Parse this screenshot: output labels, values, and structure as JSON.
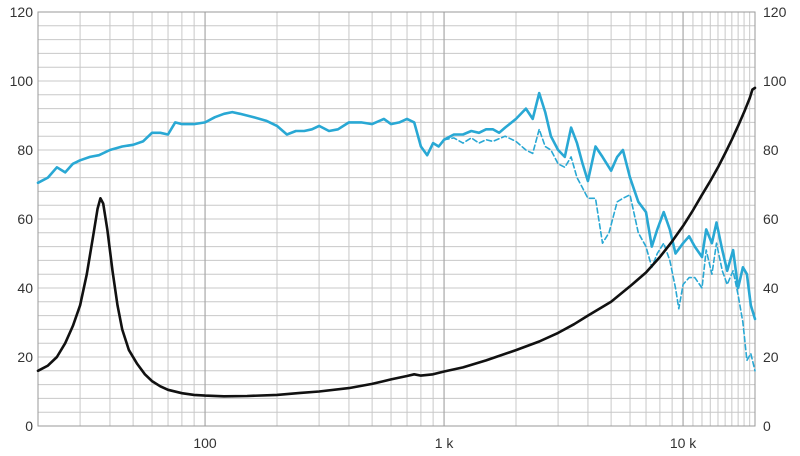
{
  "chart_data": {
    "type": "line",
    "x_scale": "log",
    "xlim": [
      20,
      20000
    ],
    "ylim": [
      0,
      120
    ],
    "y_ticks": [
      0,
      20,
      40,
      60,
      80,
      100,
      120
    ],
    "y_tick_labels": [
      "0",
      "20",
      "40",
      "60",
      "80",
      "100",
      "120"
    ],
    "x_ticks": [
      100,
      1000,
      10000
    ],
    "x_tick_labels": [
      "100",
      "1 k",
      "10 k"
    ],
    "grid": true,
    "colors": {
      "solid": "#29a8d4",
      "dashed": "#29a8d4",
      "impedance": "#111111",
      "grid": "#c8c8c8"
    },
    "series": [
      {
        "style": "solid",
        "color": "#29a8d4",
        "points": [
          [
            20,
            70.5
          ],
          [
            22,
            72
          ],
          [
            24,
            75
          ],
          [
            26,
            73.5
          ],
          [
            28,
            76
          ],
          [
            30,
            77
          ],
          [
            33,
            78
          ],
          [
            36,
            78.5
          ],
          [
            40,
            80
          ],
          [
            45,
            81
          ],
          [
            50,
            81.5
          ],
          [
            55,
            82.5
          ],
          [
            60,
            85
          ],
          [
            65,
            85
          ],
          [
            70,
            84.5
          ],
          [
            75,
            88
          ],
          [
            80,
            87.5
          ],
          [
            90,
            87.5
          ],
          [
            100,
            88
          ],
          [
            110,
            89.5
          ],
          [
            120,
            90.5
          ],
          [
            130,
            91
          ],
          [
            140,
            90.5
          ],
          [
            160,
            89.5
          ],
          [
            180,
            88.5
          ],
          [
            200,
            87
          ],
          [
            220,
            84.5
          ],
          [
            240,
            85.5
          ],
          [
            260,
            85.5
          ],
          [
            280,
            86
          ],
          [
            300,
            87
          ],
          [
            330,
            85.5
          ],
          [
            360,
            86
          ],
          [
            400,
            88
          ],
          [
            450,
            88
          ],
          [
            500,
            87.5
          ],
          [
            560,
            89
          ],
          [
            600,
            87.5
          ],
          [
            650,
            88
          ],
          [
            700,
            89
          ],
          [
            750,
            88
          ],
          [
            800,
            81
          ],
          [
            850,
            78.5
          ],
          [
            900,
            82
          ],
          [
            950,
            81
          ],
          [
            1000,
            83
          ],
          [
            1100,
            84.5
          ],
          [
            1200,
            84.5
          ],
          [
            1300,
            85.5
          ],
          [
            1400,
            85
          ],
          [
            1500,
            86
          ],
          [
            1600,
            86
          ],
          [
            1700,
            85
          ],
          [
            1800,
            86.5
          ],
          [
            2000,
            89
          ],
          [
            2200,
            92
          ],
          [
            2350,
            89
          ],
          [
            2500,
            96.5
          ],
          [
            2650,
            91
          ],
          [
            2800,
            84
          ],
          [
            3000,
            80
          ],
          [
            3200,
            78
          ],
          [
            3400,
            86.5
          ],
          [
            3600,
            82
          ],
          [
            3800,
            76
          ],
          [
            4000,
            71
          ],
          [
            4300,
            81
          ],
          [
            4600,
            78
          ],
          [
            5000,
            74
          ],
          [
            5300,
            78
          ],
          [
            5600,
            80
          ],
          [
            6000,
            72
          ],
          [
            6500,
            65
          ],
          [
            7000,
            62
          ],
          [
            7400,
            52
          ],
          [
            7800,
            57
          ],
          [
            8300,
            62
          ],
          [
            8800,
            57
          ],
          [
            9300,
            50
          ],
          [
            10000,
            53
          ],
          [
            10600,
            55
          ],
          [
            11200,
            52
          ],
          [
            12000,
            49
          ],
          [
            12500,
            57
          ],
          [
            13200,
            53
          ],
          [
            13800,
            59
          ],
          [
            14600,
            51
          ],
          [
            15300,
            45
          ],
          [
            16200,
            51
          ],
          [
            17000,
            40
          ],
          [
            17800,
            46
          ],
          [
            18500,
            44
          ],
          [
            19200,
            35
          ],
          [
            20000,
            31
          ]
        ]
      },
      {
        "style": "dashed",
        "color": "#29a8d4",
        "points": [
          [
            1000,
            83
          ],
          [
            1100,
            83.5
          ],
          [
            1200,
            82
          ],
          [
            1300,
            83.5
          ],
          [
            1400,
            82
          ],
          [
            1500,
            83
          ],
          [
            1600,
            82.5
          ],
          [
            1800,
            84
          ],
          [
            2000,
            82.5
          ],
          [
            2200,
            80
          ],
          [
            2350,
            79
          ],
          [
            2500,
            86
          ],
          [
            2650,
            81
          ],
          [
            2800,
            80
          ],
          [
            3000,
            76
          ],
          [
            3200,
            75
          ],
          [
            3400,
            78
          ],
          [
            3600,
            72
          ],
          [
            3800,
            69
          ],
          [
            4000,
            66
          ],
          [
            4300,
            66
          ],
          [
            4600,
            53
          ],
          [
            4900,
            56
          ],
          [
            5300,
            65
          ],
          [
            5600,
            66
          ],
          [
            6000,
            67
          ],
          [
            6500,
            56
          ],
          [
            7000,
            52
          ],
          [
            7400,
            46
          ],
          [
            7800,
            50
          ],
          [
            8300,
            53
          ],
          [
            8800,
            48
          ],
          [
            9300,
            40
          ],
          [
            9600,
            34
          ],
          [
            10000,
            41
          ],
          [
            10600,
            43
          ],
          [
            11200,
            43
          ],
          [
            12000,
            40
          ],
          [
            12500,
            51
          ],
          [
            13200,
            44
          ],
          [
            13800,
            53
          ],
          [
            14600,
            45
          ],
          [
            15300,
            41
          ],
          [
            16200,
            45
          ],
          [
            17000,
            38
          ],
          [
            17800,
            30
          ],
          [
            18500,
            19
          ],
          [
            19200,
            21
          ],
          [
            20000,
            16
          ]
        ]
      },
      {
        "style": "solid-thick",
        "color": "#111111",
        "points": [
          [
            20,
            16
          ],
          [
            22,
            17.5
          ],
          [
            24,
            20
          ],
          [
            26,
            24
          ],
          [
            28,
            29
          ],
          [
            30,
            35
          ],
          [
            32,
            44
          ],
          [
            34,
            55
          ],
          [
            35.5,
            63
          ],
          [
            36.5,
            66
          ],
          [
            37.5,
            64.5
          ],
          [
            39,
            57
          ],
          [
            41,
            45
          ],
          [
            43,
            35
          ],
          [
            45,
            28
          ],
          [
            48,
            22
          ],
          [
            52,
            18
          ],
          [
            56,
            15
          ],
          [
            60,
            13
          ],
          [
            65,
            11.5
          ],
          [
            70,
            10.5
          ],
          [
            80,
            9.5
          ],
          [
            90,
            9
          ],
          [
            100,
            8.8
          ],
          [
            120,
            8.6
          ],
          [
            150,
            8.7
          ],
          [
            200,
            9
          ],
          [
            250,
            9.6
          ],
          [
            300,
            10
          ],
          [
            400,
            11
          ],
          [
            500,
            12.2
          ],
          [
            600,
            13.5
          ],
          [
            700,
            14.5
          ],
          [
            750,
            15
          ],
          [
            800,
            14.6
          ],
          [
            850,
            14.8
          ],
          [
            900,
            15
          ],
          [
            1000,
            15.8
          ],
          [
            1200,
            17
          ],
          [
            1500,
            19
          ],
          [
            2000,
            22
          ],
          [
            2500,
            24.5
          ],
          [
            3000,
            27
          ],
          [
            3500,
            29.5
          ],
          [
            4000,
            32
          ],
          [
            5000,
            36
          ],
          [
            6000,
            40.5
          ],
          [
            7000,
            44.5
          ],
          [
            8000,
            49
          ],
          [
            9000,
            53.5
          ],
          [
            10000,
            58
          ],
          [
            11000,
            62.5
          ],
          [
            12000,
            67
          ],
          [
            13000,
            71
          ],
          [
            14000,
            75
          ],
          [
            15000,
            79
          ],
          [
            16000,
            83
          ],
          [
            17000,
            87
          ],
          [
            18000,
            91
          ],
          [
            19000,
            95
          ],
          [
            19500,
            97.5
          ],
          [
            20000,
            98
          ]
        ]
      }
    ]
  }
}
